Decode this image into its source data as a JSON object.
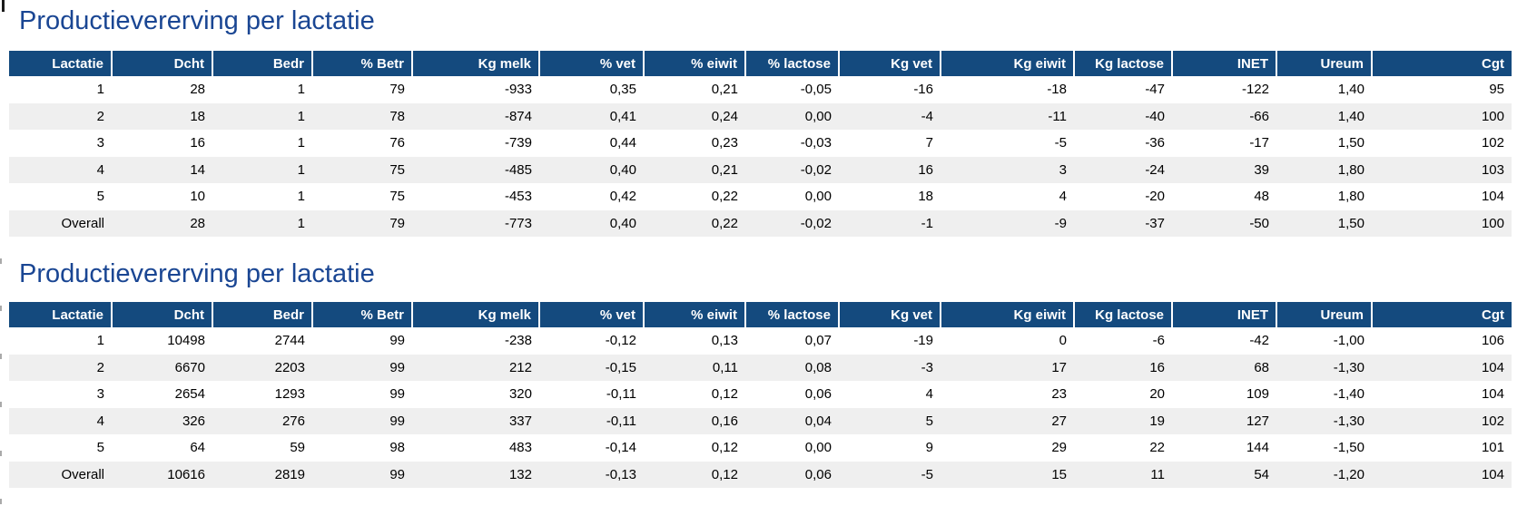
{
  "colors": {
    "title": "#1A4693",
    "header_bg": "#144A7E",
    "header_text": "#FFFFFF",
    "row_alt_bg": "#EFEFEF",
    "cell_text": "#000000"
  },
  "tables": [
    {
      "title": "Productievererving per lactatie",
      "columns": [
        "Lactatie",
        "Dcht",
        "Bedr",
        "% Betr",
        "Kg melk",
        "% vet",
        "% eiwit",
        "% lactose",
        "Kg vet",
        "Kg eiwit",
        "Kg lactose",
        "INET",
        "Ureum",
        "Cgt"
      ],
      "rows": [
        [
          "1",
          "28",
          "1",
          "79",
          "-933",
          "0,35",
          "0,21",
          "-0,05",
          "-16",
          "-18",
          "-47",
          "-122",
          "1,40",
          "95"
        ],
        [
          "2",
          "18",
          "1",
          "78",
          "-874",
          "0,41",
          "0,24",
          "0,00",
          "-4",
          "-11",
          "-40",
          "-66",
          "1,40",
          "100"
        ],
        [
          "3",
          "16",
          "1",
          "76",
          "-739",
          "0,44",
          "0,23",
          "-0,03",
          "7",
          "-5",
          "-36",
          "-17",
          "1,50",
          "102"
        ],
        [
          "4",
          "14",
          "1",
          "75",
          "-485",
          "0,40",
          "0,21",
          "-0,02",
          "16",
          "3",
          "-24",
          "39",
          "1,80",
          "103"
        ],
        [
          "5",
          "10",
          "1",
          "75",
          "-453",
          "0,42",
          "0,22",
          "0,00",
          "18",
          "4",
          "-20",
          "48",
          "1,80",
          "104"
        ],
        [
          "Overall",
          "28",
          "1",
          "79",
          "-773",
          "0,40",
          "0,22",
          "-0,02",
          "-1",
          "-9",
          "-37",
          "-50",
          "1,50",
          "100"
        ]
      ]
    },
    {
      "title": "Productievererving per lactatie",
      "columns": [
        "Lactatie",
        "Dcht",
        "Bedr",
        "% Betr",
        "Kg melk",
        "% vet",
        "% eiwit",
        "% lactose",
        "Kg vet",
        "Kg eiwit",
        "Kg lactose",
        "INET",
        "Ureum",
        "Cgt"
      ],
      "rows": [
        [
          "1",
          "10498",
          "2744",
          "99",
          "-238",
          "-0,12",
          "0,13",
          "0,07",
          "-19",
          "0",
          "-6",
          "-42",
          "-1,00",
          "106"
        ],
        [
          "2",
          "6670",
          "2203",
          "99",
          "212",
          "-0,15",
          "0,11",
          "0,08",
          "-3",
          "17",
          "16",
          "68",
          "-1,30",
          "104"
        ],
        [
          "3",
          "2654",
          "1293",
          "99",
          "320",
          "-0,11",
          "0,12",
          "0,06",
          "4",
          "23",
          "20",
          "109",
          "-1,40",
          "104"
        ],
        [
          "4",
          "326",
          "276",
          "99",
          "337",
          "-0,11",
          "0,16",
          "0,04",
          "5",
          "27",
          "19",
          "127",
          "-1,30",
          "102"
        ],
        [
          "5",
          "64",
          "59",
          "98",
          "483",
          "-0,14",
          "0,12",
          "0,00",
          "9",
          "29",
          "22",
          "144",
          "-1,50",
          "101"
        ],
        [
          "Overall",
          "10616",
          "2819",
          "99",
          "132",
          "-0,13",
          "0,12",
          "0,06",
          "-5",
          "15",
          "11",
          "54",
          "-1,20",
          "104"
        ]
      ]
    }
  ]
}
